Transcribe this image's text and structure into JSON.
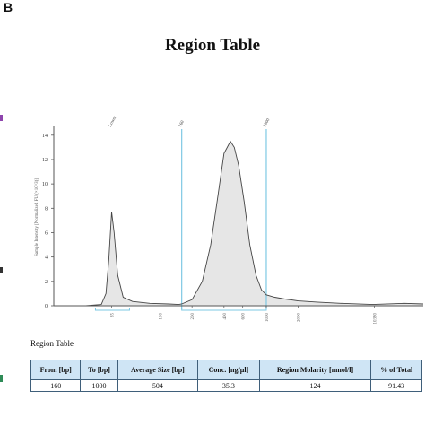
{
  "panel_letter": "B",
  "title": "Region Table",
  "table_caption": "Region Table",
  "table": {
    "headers": [
      "From [bp]",
      "To [bp]",
      "Average Size [bp]",
      "Conc. [ng/µl]",
      "Region Molarity [nmol/l]",
      "% of Total"
    ],
    "rows": [
      [
        "160",
        "1000",
        "504",
        "35.3",
        "124",
        "91.43"
      ]
    ]
  },
  "colors": {
    "axis": "#555555",
    "marker_line": "#7ec8e3",
    "fill": "#e6e6e6",
    "trace": "#444444",
    "table_header": "#cfe5f5"
  },
  "chart_data": {
    "type": "area",
    "ylabel": "Sample Intensity [Normalized FU (×10^3)]",
    "yticks": [
      0,
      2,
      4,
      6,
      8,
      10,
      12,
      14
    ],
    "ylim": [
      0,
      14.5
    ],
    "x_scale": "log",
    "xlim": [
      10,
      30000
    ],
    "xtick_labels": [
      {
        "value": 35,
        "label": "35"
      },
      {
        "value": 100,
        "label": "100"
      },
      {
        "value": 200,
        "label": "200"
      },
      {
        "value": 400,
        "label": "400"
      },
      {
        "value": 600,
        "label": "600"
      },
      {
        "value": 1000,
        "label": "1000"
      },
      {
        "value": 2000,
        "label": "2000"
      },
      {
        "value": 10380,
        "label": "10380"
      }
    ],
    "peak_labels": [
      {
        "value": 35,
        "label": "Lower"
      },
      {
        "value": 160,
        "label": "160"
      },
      {
        "value": 1000,
        "label": "1000"
      }
    ],
    "region_markers": [
      160,
      1000
    ],
    "series": [
      {
        "x": [
          10,
          20,
          28,
          31,
          33,
          35,
          37,
          40,
          45,
          55,
          80,
          120,
          150,
          160,
          200,
          250,
          300,
          350,
          400,
          460,
          500,
          550,
          620,
          700,
          800,
          900,
          1000,
          1200,
          1500,
          2000,
          3000,
          5000,
          10000,
          20000,
          30000
        ],
        "y": [
          0,
          0,
          0.1,
          1.0,
          3.8,
          7.7,
          6.0,
          2.5,
          0.7,
          0.35,
          0.2,
          0.15,
          0.1,
          0.15,
          0.5,
          2.0,
          5.0,
          9.0,
          12.5,
          13.5,
          13.0,
          11.5,
          8.5,
          5.0,
          2.5,
          1.3,
          0.9,
          0.7,
          0.55,
          0.4,
          0.3,
          0.2,
          0.1,
          0.2,
          0.15
        ]
      }
    ]
  }
}
